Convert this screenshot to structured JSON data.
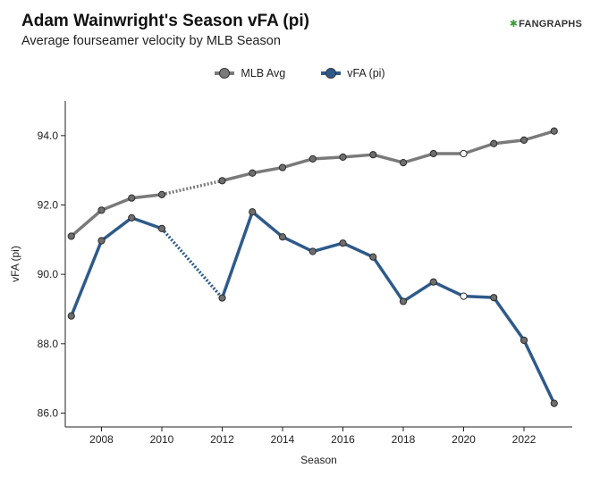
{
  "header": {
    "title": "Adam Wainwright's Season vFA (pi)",
    "subtitle": "Average fourseamer velocity by MLB Season",
    "logo_text": "FANGRAPHS",
    "logo_icon": "fangraphs-logo-icon"
  },
  "colors": {
    "mlb_avg": "#7a7a7a",
    "vfa": "#2e5a8a",
    "marker_fill": "#6e6e6e",
    "marker_missing_fill": "#ffffff",
    "axis": "#222222"
  },
  "chart_data": {
    "type": "line",
    "xlabel": "Season",
    "ylabel": "vFA (pi)",
    "xlim": [
      2006.8,
      2023.6
    ],
    "ylim": [
      85.6,
      95.0
    ],
    "x_ticks": [
      "2008",
      "2010",
      "2012",
      "2014",
      "2016",
      "2018",
      "2020",
      "2022"
    ],
    "y_ticks": [
      "94.0",
      "92.0",
      "90.0",
      "88.0",
      "86.0"
    ],
    "legend_position": "top-center",
    "grid": false,
    "series": [
      {
        "name": "MLB Avg",
        "x": [
          2007,
          2008,
          2009,
          2010,
          2012,
          2013,
          2014,
          2015,
          2016,
          2017,
          2018,
          2019,
          2020,
          2021,
          2022,
          2023
        ],
        "y": [
          91.1,
          91.85,
          92.2,
          92.3,
          92.7,
          92.92,
          93.08,
          93.33,
          93.38,
          93.45,
          93.22,
          93.48,
          93.48,
          93.77,
          93.87,
          94.13
        ],
        "hollow_points": [
          2020
        ],
        "dotted_gaps": [
          [
            2010,
            2012
          ]
        ]
      },
      {
        "name": "vFA (pi)",
        "x": [
          2007,
          2008,
          2009,
          2010,
          2012,
          2013,
          2014,
          2015,
          2016,
          2017,
          2018,
          2019,
          2020,
          2021,
          2022,
          2023
        ],
        "y": [
          88.8,
          90.97,
          91.63,
          91.32,
          89.32,
          91.8,
          91.08,
          90.66,
          90.9,
          90.5,
          89.22,
          89.78,
          89.37,
          89.33,
          88.1,
          86.28
        ],
        "hollow_points": [
          2020
        ],
        "dotted_gaps": [
          [
            2010,
            2012
          ]
        ]
      }
    ]
  }
}
